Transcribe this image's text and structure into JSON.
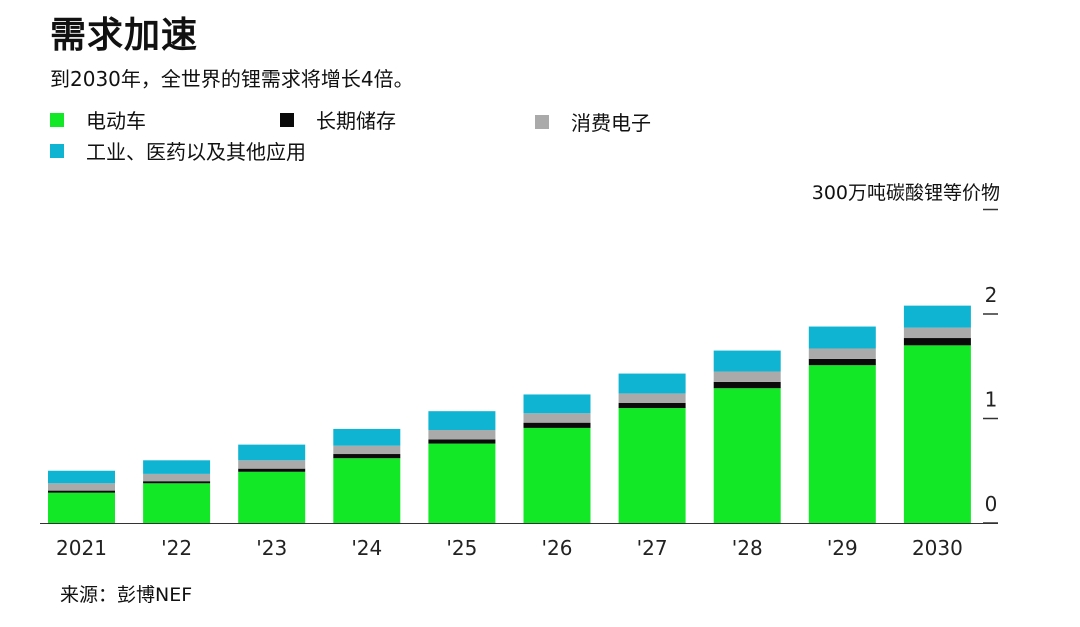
{
  "title": "需求加速",
  "subtitle": "到2030年，全世界的锂需求将增长4倍。",
  "source": "来源：彭博NEF",
  "chart_data": {
    "type": "bar",
    "stacked": true,
    "categories": [
      "2021",
      "'22",
      "'23",
      "'24",
      "'25",
      "'26",
      "'27",
      "'28",
      "'29",
      "2030"
    ],
    "series": [
      {
        "name": "电动车",
        "color": "#13e827",
        "values": [
          0.29,
          0.38,
          0.49,
          0.62,
          0.76,
          0.91,
          1.1,
          1.29,
          1.51,
          1.7
        ]
      },
      {
        "name": "长期储存",
        "color": "#0a0a0a",
        "values": [
          0.02,
          0.02,
          0.03,
          0.04,
          0.04,
          0.05,
          0.05,
          0.06,
          0.06,
          0.07
        ]
      },
      {
        "name": "消费电子",
        "color": "#aaaaaa",
        "values": [
          0.07,
          0.07,
          0.08,
          0.08,
          0.09,
          0.09,
          0.09,
          0.1,
          0.1,
          0.1
        ]
      },
      {
        "name": "工业、医药以及其他应用",
        "color": "#0fb4d2",
        "values": [
          0.12,
          0.13,
          0.15,
          0.16,
          0.18,
          0.18,
          0.19,
          0.2,
          0.21,
          0.21
        ]
      }
    ],
    "ylabel": "300万吨碳酸锂等价物",
    "yticks": [
      "0",
      "1",
      "2"
    ],
    "ylim": [
      0,
      3
    ],
    "legend": "top-left",
    "grid": false
  }
}
